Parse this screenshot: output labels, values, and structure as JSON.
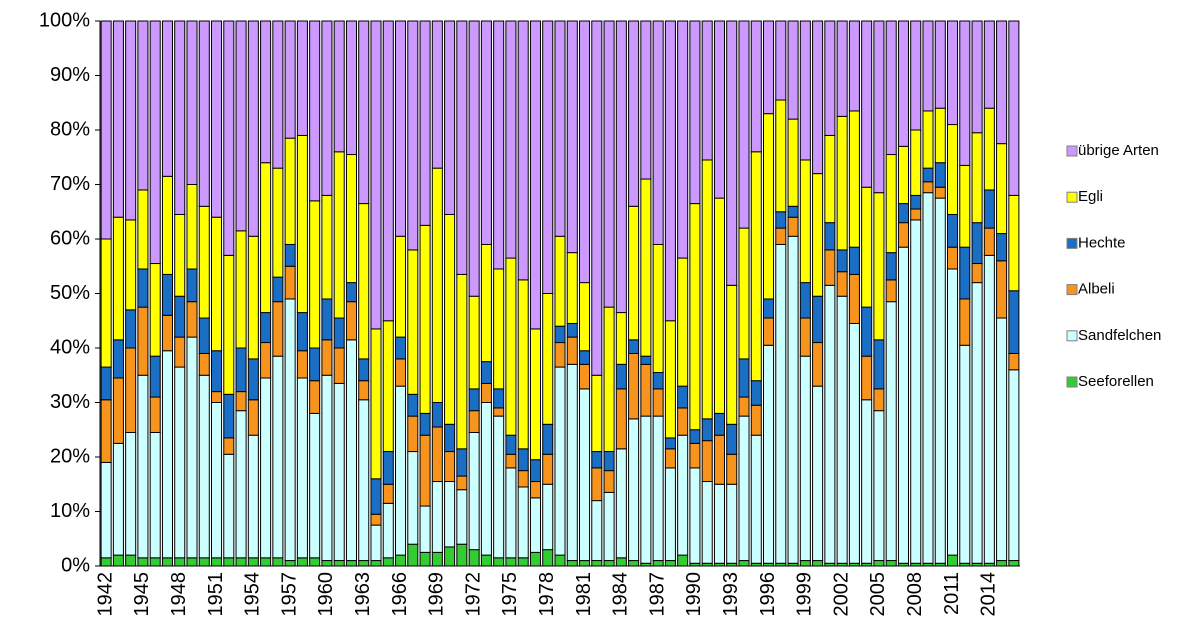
{
  "chart_data": {
    "type": "stacked_bar_100",
    "categories": [
      "1942",
      null,
      null,
      "1945",
      null,
      null,
      "1948",
      null,
      null,
      "1951",
      null,
      null,
      "1954",
      null,
      null,
      "1957",
      null,
      null,
      "1960",
      null,
      null,
      "1963",
      null,
      null,
      "1966",
      null,
      null,
      "1969",
      null,
      null,
      "1972",
      null,
      null,
      "1975",
      null,
      null,
      "1978",
      null,
      null,
      "1981",
      null,
      null,
      "1984",
      null,
      null,
      "1987",
      null,
      null,
      "1990",
      null,
      null,
      "1993",
      null,
      null,
      "1996",
      null,
      null,
      "1999",
      null,
      null,
      "2002",
      null,
      null,
      "2005",
      null,
      null,
      "2008",
      null,
      null,
      "2011",
      null,
      null,
      "2014",
      null,
      null
    ],
    "series": [
      {
        "name": "Seeforellen",
        "color": "#33cc33",
        "values": [
          1.5,
          2,
          2,
          1.5,
          1.5,
          1.5,
          1.5,
          1.5,
          1.5,
          1.5,
          1.5,
          1.5,
          1.5,
          1.5,
          1.5,
          1,
          1.5,
          1.5,
          1,
          1,
          1,
          1,
          1,
          1.5,
          2,
          4,
          2.5,
          2.5,
          3.5,
          4,
          3,
          2,
          1.5,
          1.5,
          1.5,
          2.5,
          3,
          2,
          1,
          1,
          1,
          1,
          1.5,
          1,
          0.5,
          1,
          1,
          2,
          0.5,
          0.5,
          0.5,
          0.5,
          1,
          0.5,
          0.5,
          0.5,
          0.5,
          1,
          1,
          0.5,
          0.5,
          0.5,
          0.5,
          1,
          1,
          0.5,
          0.5,
          0.5,
          0.5,
          2,
          0.5,
          0.5,
          0.5,
          1,
          1
        ]
      },
      {
        "name": "Sandfelchen",
        "color": "#ccffff",
        "values": [
          17.5,
          20.5,
          22.5,
          33.5,
          23,
          38,
          35,
          40.5,
          33.5,
          28.5,
          19,
          27,
          22.5,
          33,
          37,
          48,
          33,
          26.5,
          34,
          32.5,
          40.5,
          29.5,
          6.5,
          10,
          31,
          17,
          8.5,
          13,
          12,
          10,
          21.5,
          28,
          26,
          16.5,
          13,
          10,
          12,
          34.5,
          36,
          31.5,
          11,
          12.5,
          20,
          26,
          27,
          26.5,
          17,
          22,
          17.5,
          15,
          14.5,
          14.5,
          26.5,
          23.5,
          40,
          58.5,
          60,
          37.5,
          32,
          51,
          49,
          44,
          30,
          27.5,
          47.5,
          58,
          63,
          68,
          67,
          52.5,
          40,
          51.5,
          56.5,
          44.5,
          35
        ]
      },
      {
        "name": "Albeli",
        "color": "#f7941d",
        "values": [
          11.5,
          12,
          15.5,
          12.5,
          6.5,
          6.5,
          5.5,
          6.5,
          4,
          2,
          3,
          3.5,
          6.5,
          6.5,
          10,
          6,
          5,
          6,
          6.5,
          6.5,
          7,
          3.5,
          2,
          3.5,
          5,
          6.5,
          13,
          10,
          5.5,
          2.5,
          4,
          3.5,
          1.5,
          2.5,
          3,
          3,
          5.5,
          4.5,
          5,
          4.5,
          6,
          4,
          11,
          12,
          9.5,
          5,
          3.5,
          5,
          4.5,
          7.5,
          9,
          5.5,
          3.5,
          5.5,
          5,
          3,
          3.5,
          7,
          8,
          6.5,
          4.5,
          9,
          8,
          4,
          4,
          4.5,
          2,
          2,
          2,
          4,
          8.5,
          3.5,
          5,
          10.5,
          3
        ]
      },
      {
        "name": "Hechte",
        "color": "#1a6fc4",
        "values": [
          6,
          7,
          7,
          7,
          7.5,
          7.5,
          7.5,
          6,
          6.5,
          7.5,
          8,
          8,
          7.5,
          5.5,
          4.5,
          4,
          7,
          6,
          7.5,
          5.5,
          3.5,
          4,
          6.5,
          6,
          4,
          4,
          4,
          4.5,
          5,
          5,
          4,
          4,
          3.5,
          3.5,
          4,
          4,
          5.5,
          3,
          2.5,
          2.5,
          3,
          3.5,
          4.5,
          2.5,
          1.5,
          3,
          2,
          4,
          2.5,
          4,
          4,
          5.5,
          7,
          4.5,
          3.5,
          3,
          2,
          6.5,
          8.5,
          5,
          4,
          5,
          9,
          9,
          5,
          3.5,
          2.5,
          2.5,
          4.5,
          6,
          9.5,
          7.5,
          7,
          5,
          11.5
        ]
      },
      {
        "name": "Egli",
        "color": "#ffff00",
        "values": [
          23.5,
          22.5,
          16.5,
          14.5,
          17,
          18,
          15,
          15.5,
          20.5,
          24.5,
          25.5,
          21.5,
          22.5,
          27.5,
          20,
          19.5,
          32.5,
          27,
          19,
          30.5,
          23.5,
          28.5,
          27.5,
          24,
          18.5,
          26.5,
          34.5,
          43,
          38.5,
          32,
          17,
          21.5,
          22,
          32.5,
          31,
          24,
          24,
          16.5,
          13,
          12.5,
          14,
          26.5,
          9.5,
          24.5,
          32.5,
          23.5,
          21.5,
          23.5,
          41.5,
          47.5,
          39.5,
          25.5,
          24,
          42,
          34,
          20.5,
          16,
          22.5,
          22.5,
          16,
          24.5,
          25,
          22,
          27,
          18,
          10.5,
          12,
          10.5,
          10,
          16.5,
          15,
          16.5,
          15,
          16.5,
          17.5
        ]
      },
      {
        "name": "übrige Arten",
        "color": "#cc99ff",
        "values": [
          40,
          36,
          36.5,
          31,
          44.5,
          28.5,
          35.5,
          30,
          34,
          36,
          43,
          38.5,
          39.5,
          26,
          27,
          21.5,
          21,
          33,
          32,
          24,
          24.5,
          33.5,
          56.5,
          55,
          39.5,
          42,
          37.5,
          27,
          35.5,
          46.5,
          50.5,
          41,
          45.5,
          43.5,
          47.5,
          56.5,
          50,
          39.5,
          42.5,
          48,
          65,
          52.5,
          53.5,
          34,
          29,
          41,
          55,
          43.5,
          33.5,
          25.5,
          32.5,
          48.5,
          38,
          24,
          17,
          14.5,
          18,
          25.5,
          28,
          21,
          17.5,
          16.5,
          30.5,
          31.5,
          24.5,
          23,
          20,
          16.5,
          16,
          19,
          26.5,
          20.5,
          16,
          22.5,
          32
        ]
      }
    ],
    "ylim": [
      0,
      100
    ],
    "yticks": [
      {
        "value": 0,
        "label": "0%"
      },
      {
        "value": 10,
        "label": "10%"
      },
      {
        "value": 20,
        "label": "20%"
      },
      {
        "value": 30,
        "label": "30%"
      },
      {
        "value": 40,
        "label": "40%"
      },
      {
        "value": 50,
        "label": "50%"
      },
      {
        "value": 60,
        "label": "60%"
      },
      {
        "value": 70,
        "label": "70%"
      },
      {
        "value": 80,
        "label": "80%"
      },
      {
        "value": 90,
        "label": "90%"
      },
      {
        "value": 100,
        "label": "100%"
      }
    ],
    "grid": false,
    "legend": "right"
  }
}
